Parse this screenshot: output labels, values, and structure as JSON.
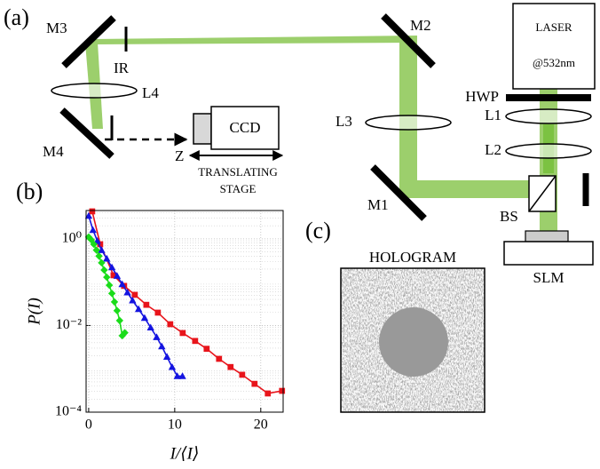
{
  "figure": {
    "panel_a": "(a)",
    "panel_b": "(b)",
    "panel_c": "(c)",
    "m3": "M3",
    "ir": "IR",
    "l4": "L4",
    "m4": "M4",
    "z": "Z",
    "ccd": "CCD",
    "stage_1": "TRANSLATING",
    "stage_2": "STAGE",
    "m2": "M2",
    "l3": "L3",
    "m1": "M1",
    "laser": "LASER",
    "wavelength": "@532nm",
    "hwp": "HWP",
    "l1": "L1",
    "l2": "L2",
    "bs": "BS",
    "slm": "SLM",
    "hologram": "HOLOGRAM"
  },
  "chart_data": {
    "type": "line",
    "xlabel": "I/⟨I⟩",
    "ylabel": "P(I)",
    "xlim": [
      -0.3,
      22.6
    ],
    "ylim": [
      0.0001,
      4.5
    ],
    "ylog": true,
    "grid": true,
    "xticks": [
      0,
      10,
      20
    ],
    "yticks": [
      {
        "value": 0.0001,
        "label": "10⁻⁴"
      },
      {
        "value": 0.01,
        "label": "10⁻²"
      },
      {
        "value": 1,
        "label": "10⁰"
      }
    ],
    "series": [
      {
        "color": "#e8141b",
        "marker": "square",
        "x": [
          0.41,
          1.34,
          2.89,
          4.12,
          5.36,
          6.7,
          8.04,
          9.48,
          10.93,
          12.37,
          13.71,
          15.15,
          16.49,
          17.84,
          19.28,
          20.82,
          22.47
        ],
        "values": [
          4.3,
          0.75,
          0.144,
          0.082,
          0.051,
          0.03,
          0.0198,
          0.0107,
          0.0067,
          0.0044,
          0.0029,
          0.0017,
          0.0011,
          0.00073,
          0.00045,
          0.00027,
          0.00031
        ]
      },
      {
        "color": "#1414e0",
        "marker": "triangle",
        "x": [
          0.0,
          0.5,
          1.0,
          1.5,
          2.1,
          2.7,
          3.3,
          3.9,
          4.5,
          5.1,
          5.8,
          6.5,
          7.2,
          7.9,
          8.5,
          9.1,
          9.7,
          10.3,
          10.9
        ],
        "values": [
          3.4,
          1.6,
          0.9,
          0.55,
          0.35,
          0.22,
          0.14,
          0.09,
          0.058,
          0.038,
          0.024,
          0.015,
          0.009,
          0.0054,
          0.0033,
          0.0019,
          0.0011,
          0.00068,
          0.00068
        ]
      },
      {
        "color": "#1adc1a",
        "marker": "diamond",
        "x": [
          0.0,
          0.3,
          0.6,
          0.9,
          1.2,
          1.5,
          1.8,
          2.1,
          2.4,
          2.7,
          3.0,
          3.3,
          3.6,
          3.9,
          4.2
        ],
        "values": [
          1.1,
          0.95,
          0.75,
          0.55,
          0.4,
          0.28,
          0.19,
          0.13,
          0.085,
          0.055,
          0.035,
          0.022,
          0.013,
          0.0058,
          0.0068
        ]
      }
    ]
  }
}
